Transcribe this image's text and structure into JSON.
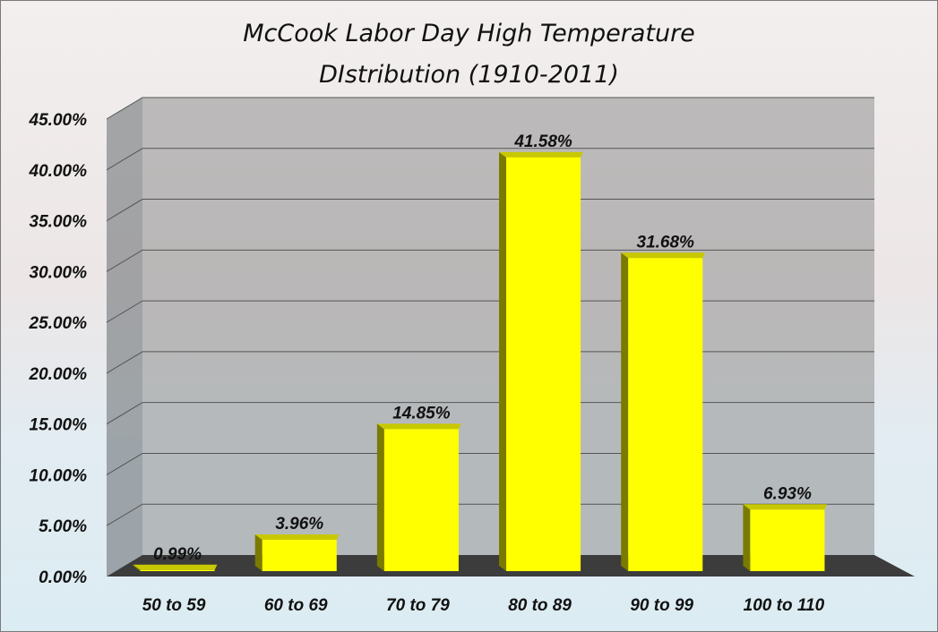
{
  "chart_data": {
    "type": "bar",
    "title": "McCook Labor Day High Temperature DIstribution (1910-2011)",
    "title_lines": [
      "McCook Labor Day High Temperature",
      "DIstribution (1910-2011)"
    ],
    "categories": [
      "50 to 59",
      "60 to 69",
      "70 to 79",
      "80 to 89",
      "90 to 99",
      "100 to 110"
    ],
    "values": [
      0.99,
      3.96,
      14.85,
      41.58,
      31.68,
      6.93
    ],
    "data_labels": [
      "0.99%",
      "3.96%",
      "14.85%",
      "41.58%",
      "31.68%",
      "6.93%"
    ],
    "yticks": [
      "0.00%",
      "5.00%",
      "10.00%",
      "15.00%",
      "20.00%",
      "25.00%",
      "30.00%",
      "35.00%",
      "40.00%",
      "45.00%"
    ],
    "ylim": [
      0,
      45
    ],
    "y_unit": "%",
    "grid": true,
    "legend": "none",
    "style": "3d-column",
    "colors": {
      "bar_front": "#ffff00",
      "bar_top": "#c8c800",
      "bar_side": "#7a7a00",
      "floor": "#3c3c3c",
      "back_wall": "#8f8f8f",
      "side_wall": "#6f7478",
      "gridline": "#555555"
    }
  }
}
